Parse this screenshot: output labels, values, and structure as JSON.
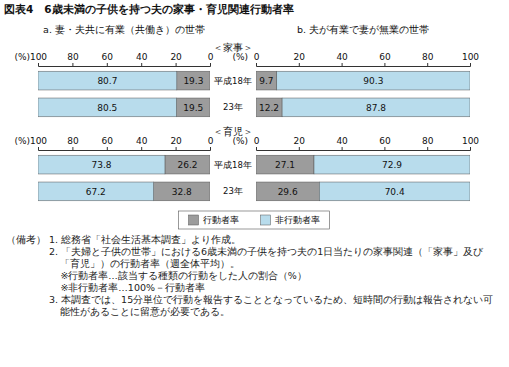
{
  "figure_title": "図表4　6歳未満の子供を持つ夫の家事・育児関連行動者率",
  "notes": {
    "label": "（備考）",
    "items": [
      "1. 総務省「社会生活基本調査」より作成。",
      "2. 「夫婦と子供の世帯」における6歳未満の子供を持つ夫の1日当たりの家事関連（「家事」及び「育児」）の行動者率（週全体平均）。",
      "※行動者率…該当する種類の行動をした人の割合（%）",
      "※非行動者率…100%－行動者率",
      "3. 本調査では、15分単位で行動を報告することとなっているため、短時間の行動は報告されない可能性があることに留意が必要である。"
    ]
  },
  "chart_data": [
    {
      "type": "bar",
      "orientation": "horizontal",
      "stacked": true,
      "data_labels": true,
      "legend": "bottom",
      "title": "a. 妻・夫共に有業（共働き）の世帯",
      "subtitle": "＜家事＞",
      "xlabel": "(%)",
      "categories": [
        "平成18年",
        "23年"
      ],
      "xlim": [
        100,
        0
      ],
      "xticks": [
        100,
        80,
        60,
        40,
        20,
        0
      ],
      "series": [
        {
          "name": "行動者率",
          "color": "#9c9c9c",
          "values": [
            19.3,
            19.5
          ]
        },
        {
          "name": "非行動者率",
          "color": "#b8dcec",
          "values": [
            80.7,
            80.5
          ]
        }
      ]
    },
    {
      "type": "bar",
      "orientation": "horizontal",
      "stacked": true,
      "data_labels": true,
      "title": "b. 夫が有業で妻が無業の世帯",
      "xlabel": "(%)",
      "categories": [
        null,
        null
      ],
      "xlim": [
        0,
        100
      ],
      "xticks": [
        0,
        20,
        40,
        60,
        80,
        100
      ],
      "series": [
        {
          "color": "#9c9c9c",
          "values": [
            9.7,
            12.2
          ]
        },
        {
          "color": "#b8dcec",
          "values": [
            90.3,
            87.8
          ]
        }
      ]
    },
    {
      "type": "bar",
      "orientation": "horizontal",
      "stacked": true,
      "data_labels": true,
      "subtitle": "＜育児＞",
      "xlabel": "(%)",
      "categories": [
        "平成18年",
        "23年"
      ],
      "xlim": [
        100,
        0
      ],
      "xticks": [
        100,
        80,
        60,
        40,
        20,
        0
      ],
      "series": [
        {
          "color": "#9c9c9c",
          "values": [
            26.2,
            32.8
          ]
        },
        {
          "color": "#b8dcec",
          "values": [
            73.8,
            67.2
          ]
        }
      ]
    },
    {
      "type": "bar",
      "orientation": "horizontal",
      "stacked": true,
      "data_labels": true,
      "xlabel": "(%)",
      "categories": [
        null,
        null
      ],
      "xlim": [
        0,
        100
      ],
      "xticks": [
        0,
        20,
        40,
        60,
        80,
        100
      ],
      "series": [
        {
          "color": "#9c9c9c",
          "values": [
            27.1,
            29.6
          ]
        },
        {
          "color": "#b8dcec",
          "values": [
            72.9,
            70.4
          ]
        }
      ]
    }
  ]
}
